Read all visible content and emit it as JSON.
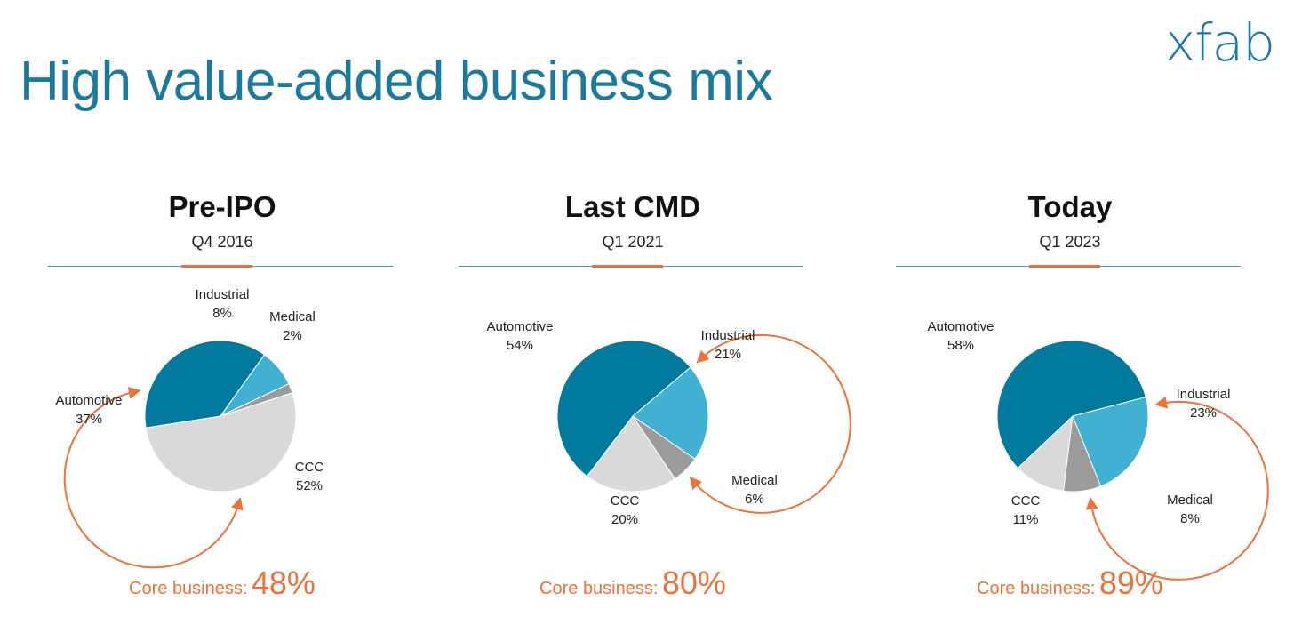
{
  "title": "High value-added business mix",
  "logo": "xfab",
  "colors": {
    "Automotive": "#027a9e",
    "Industrial": "#42b0d0",
    "Medical": "#9b9b9b",
    "CCC": "#d9d9d9",
    "accent": "#e8743b",
    "title": "#1b7a9c"
  },
  "chart_data": [
    {
      "type": "pie",
      "title": "Pre-IPO",
      "subtitle": "Q4 2016",
      "categories": [
        "Automotive",
        "Industrial",
        "Medical",
        "CCC"
      ],
      "values": [
        37,
        8,
        2,
        52
      ],
      "labels": [
        {
          "category": "Automotive",
          "text": "37%"
        },
        {
          "category": "Industrial",
          "text": "8%"
        },
        {
          "category": "Medical",
          "text": "2%"
        },
        {
          "category": "CCC",
          "text": "52%"
        }
      ],
      "core_label": "Core business:",
      "core_value": "48%"
    },
    {
      "type": "pie",
      "title": "Last CMD",
      "subtitle": "Q1 2021",
      "categories": [
        "Automotive",
        "Industrial",
        "Medical",
        "CCC"
      ],
      "values": [
        54,
        21,
        6,
        20
      ],
      "labels": [
        {
          "category": "Automotive",
          "text": "54%"
        },
        {
          "category": "Industrial",
          "text": "21%"
        },
        {
          "category": "Medical",
          "text": "6%"
        },
        {
          "category": "CCC",
          "text": "20%"
        }
      ],
      "core_label": "Core business:",
      "core_value": "80%"
    },
    {
      "type": "pie",
      "title": "Today",
      "subtitle": "Q1 2023",
      "categories": [
        "Automotive",
        "Industrial",
        "Medical",
        "CCC"
      ],
      "values": [
        58,
        23,
        8,
        11
      ],
      "labels": [
        {
          "category": "Automotive",
          "text": "58%"
        },
        {
          "category": "Industrial",
          "text": "23%"
        },
        {
          "category": "Medical",
          "text": "8%"
        },
        {
          "category": "CCC",
          "text": "11%"
        }
      ],
      "core_label": "Core business:",
      "core_value": "89%"
    }
  ]
}
